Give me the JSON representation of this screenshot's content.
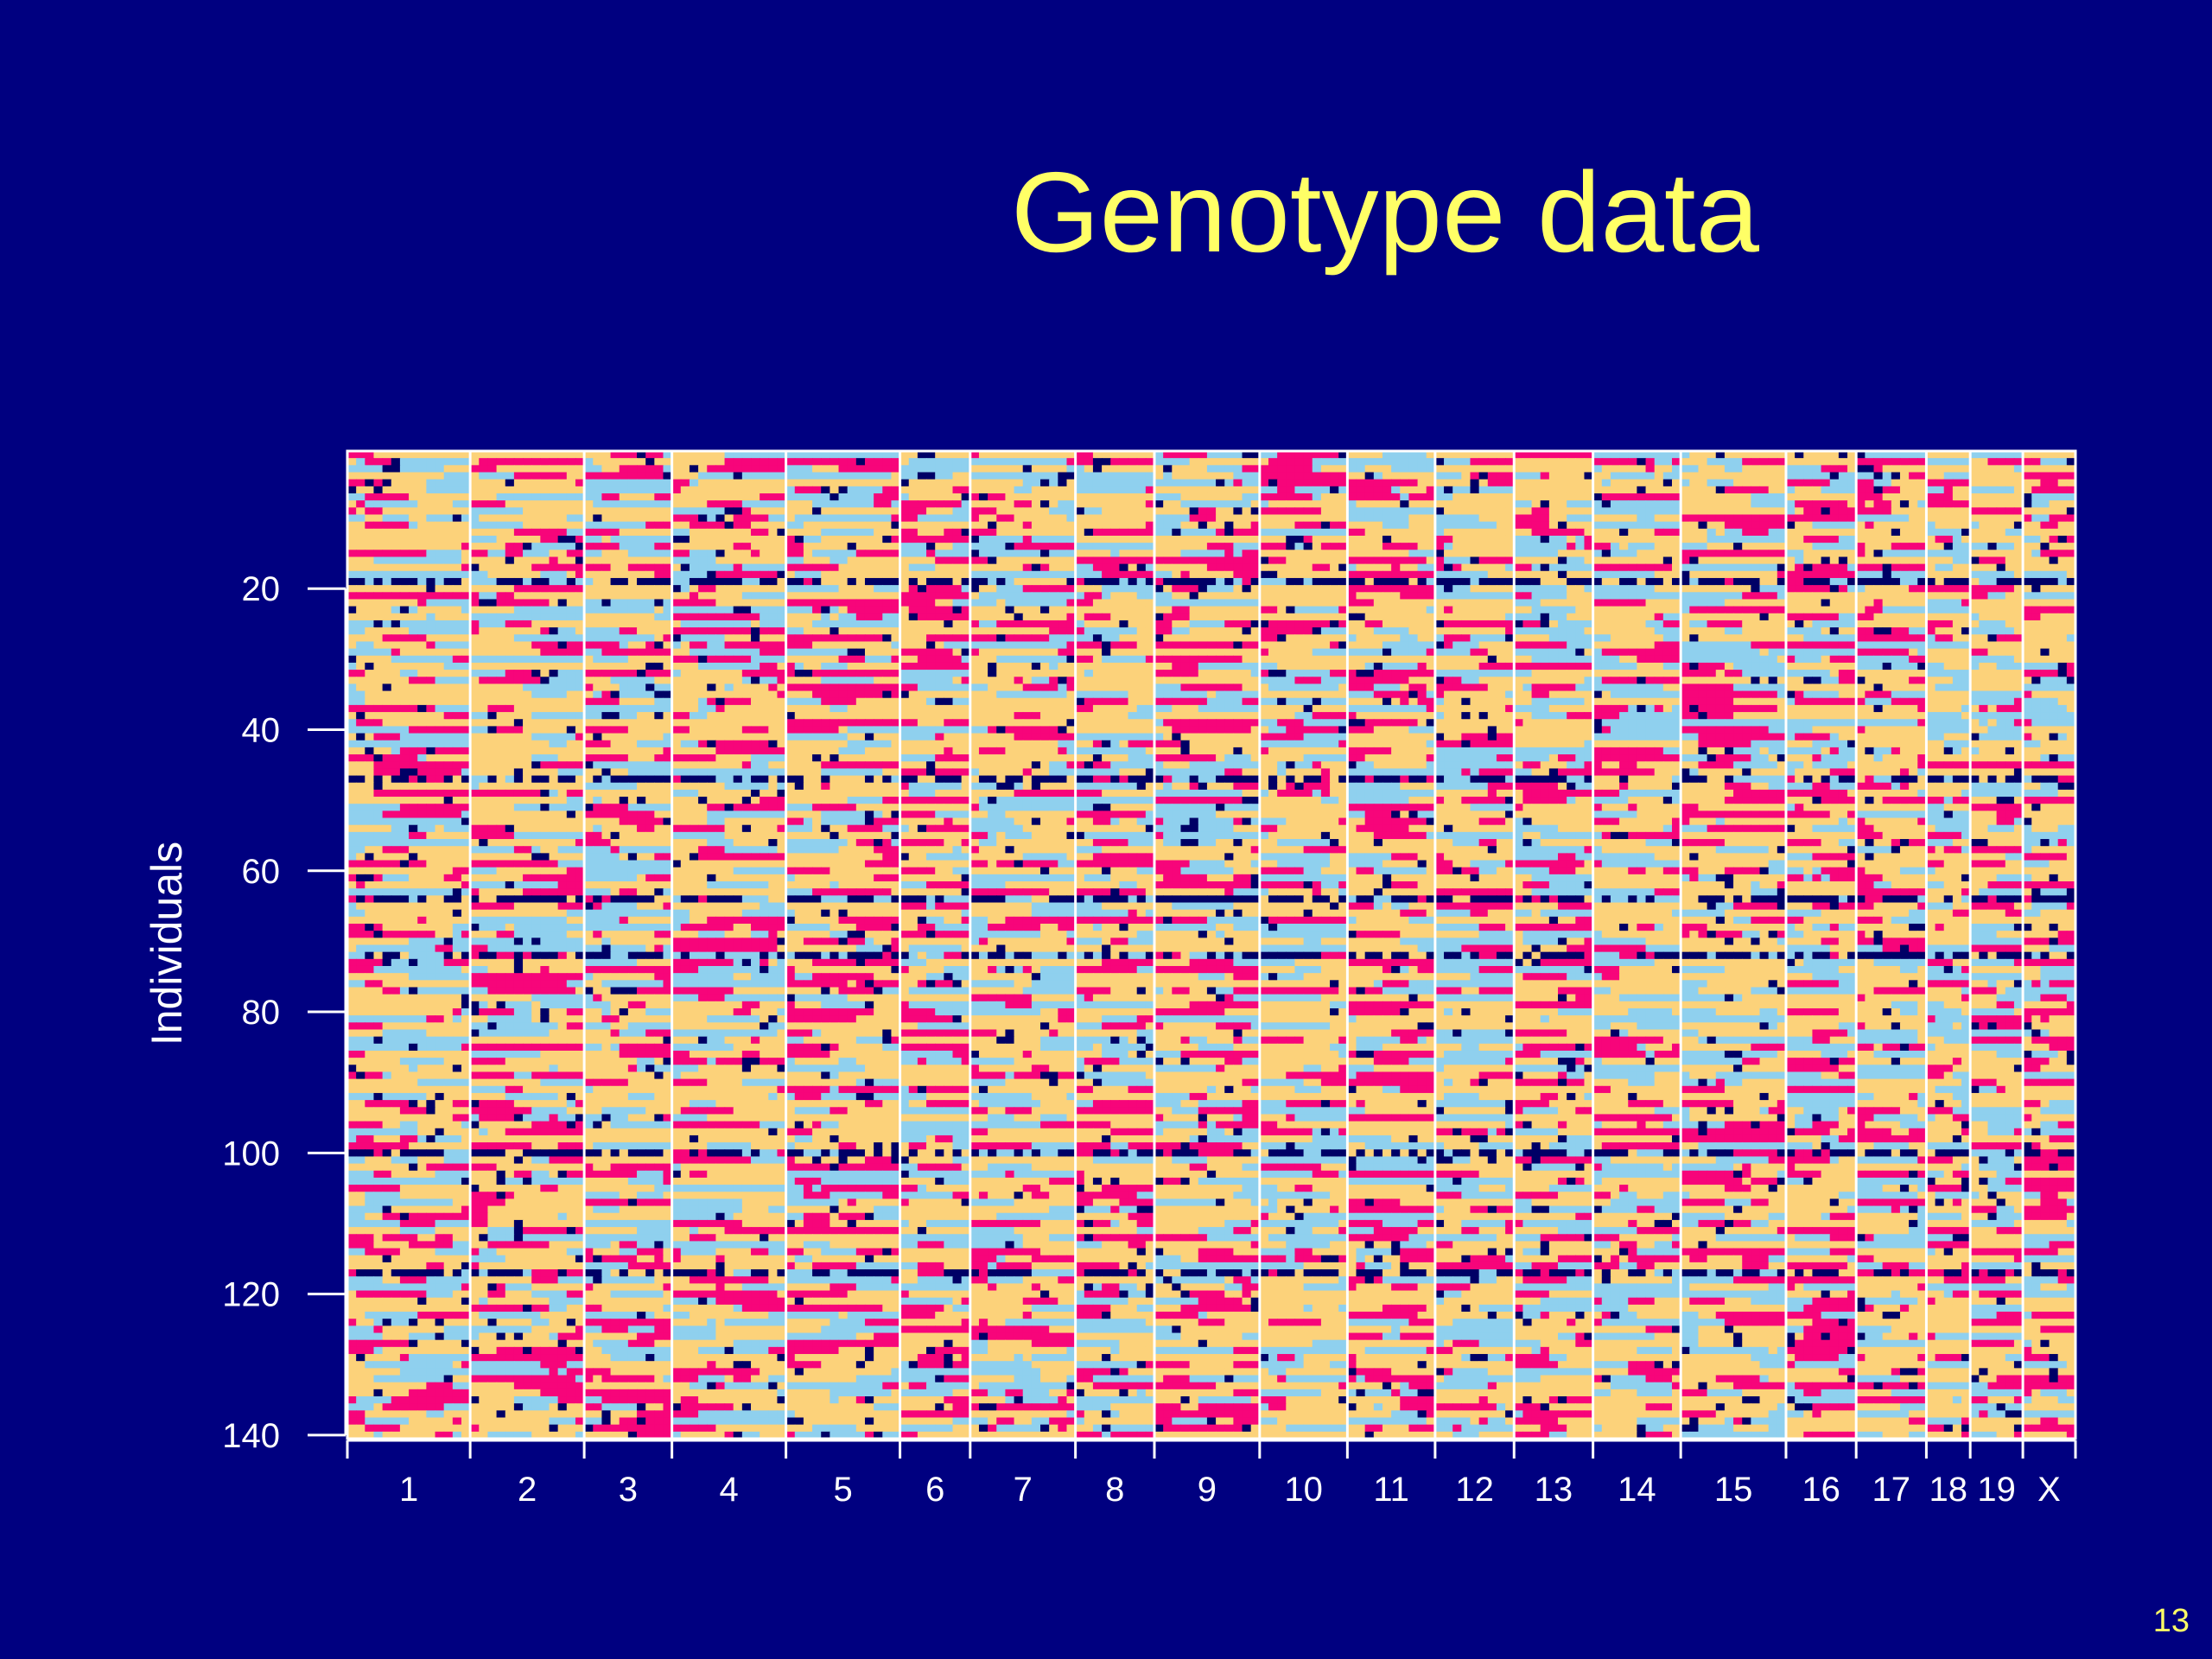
{
  "slide": {
    "title": "Genotype data",
    "page_number": "13"
  },
  "chart_data": {
    "type": "heatmap",
    "title": "Genotype data",
    "ylabel": "Individuals",
    "xlabel": "",
    "n_individuals": 140,
    "y_ticks": [
      20,
      40,
      60,
      80,
      100,
      120,
      140
    ],
    "y_tick_labels": [
      "20",
      "40",
      "60",
      "80",
      "100",
      "120",
      "140"
    ],
    "chromosomes": [
      {
        "name": "1",
        "markers": 14
      },
      {
        "name": "2",
        "markers": 13
      },
      {
        "name": "3",
        "markers": 10
      },
      {
        "name": "4",
        "markers": 13
      },
      {
        "name": "5",
        "markers": 13
      },
      {
        "name": "6",
        "markers": 8
      },
      {
        "name": "7",
        "markers": 12
      },
      {
        "name": "8",
        "markers": 9
      },
      {
        "name": "9",
        "markers": 12
      },
      {
        "name": "10",
        "markers": 10
      },
      {
        "name": "11",
        "markers": 10
      },
      {
        "name": "12",
        "markers": 9
      },
      {
        "name": "13",
        "markers": 9
      },
      {
        "name": "14",
        "markers": 10
      },
      {
        "name": "15",
        "markers": 12
      },
      {
        "name": "16",
        "markers": 8
      },
      {
        "name": "17",
        "markers": 8
      },
      {
        "name": "18",
        "markers": 5
      },
      {
        "name": "19",
        "markers": 6
      },
      {
        "name": "X",
        "markers": 6
      }
    ],
    "colors": {
      "background": "#000080",
      "genotype_a": "#fcd27a",
      "genotype_b": "#8fd0ee",
      "genotype_c": "#f7057a",
      "missing": "#000066",
      "separator": "#ffffff",
      "title": "#ffff66"
    },
    "missing_rows": [
      18,
      46,
      63,
      71,
      99,
      116
    ],
    "grid": false,
    "legend": "none"
  }
}
